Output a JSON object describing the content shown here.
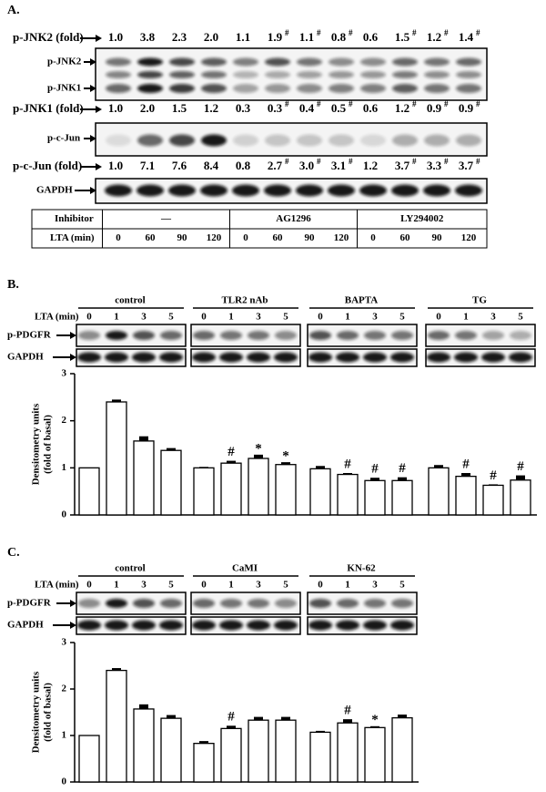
{
  "panel_a": {
    "panel_label": "A.",
    "fold_rows": [
      {
        "label": "p-JNK2 (fold)",
        "values": [
          "1.0",
          "3.8",
          "2.3",
          "2.0",
          "1.1",
          "1.9",
          "1.1",
          "0.8",
          "0.6",
          "1.5",
          "1.2",
          "1.4"
        ],
        "marks": [
          null,
          null,
          null,
          null,
          null,
          "#",
          "#",
          "#",
          null,
          "#",
          "#",
          "#"
        ]
      },
      {
        "label": "p-JNK1 (fold)",
        "values": [
          "1.0",
          "2.0",
          "1.5",
          "1.2",
          "0.3",
          "0.3",
          "0.4",
          "0.5",
          "0.6",
          "1.2",
          "0.9",
          "0.9"
        ],
        "marks": [
          null,
          null,
          null,
          null,
          null,
          "#",
          "#",
          "#",
          null,
          "#",
          "#",
          "#"
        ]
      },
      {
        "label": "p-c-Jun (fold)",
        "values": [
          "1.0",
          "7.1",
          "7.6",
          "8.4",
          "0.8",
          "2.7",
          "3.0",
          "3.1",
          "1.2",
          "3.7",
          "3.3",
          "3.7"
        ],
        "marks": [
          null,
          null,
          null,
          null,
          null,
          "#",
          "#",
          "#",
          null,
          "#",
          "#",
          "#"
        ]
      }
    ],
    "blot_labels": [
      "p-JNK2",
      "p-JNK1",
      "p-c-Jun",
      "GAPDH"
    ],
    "table": {
      "header": [
        "Inhibitor",
        "—",
        "AG1296",
        "LY294002"
      ],
      "row_label": "LTA (min)",
      "times": [
        "0",
        "60",
        "90",
        "120",
        "0",
        "60",
        "90",
        "120",
        "0",
        "60",
        "90",
        "120"
      ]
    }
  },
  "chart_data": [
    {
      "type": "bar",
      "panel_label": "B.",
      "groups": [
        "control",
        "TLR2 nAb",
        "BAPTA",
        "TG"
      ],
      "time_label": "LTA (min)",
      "blot_labels": [
        "p-PDGFR",
        "GAPDH"
      ],
      "categories": [
        "0",
        "1",
        "3",
        "5",
        "0",
        "1",
        "3",
        "5",
        "0",
        "1",
        "3",
        "5",
        "0",
        "1",
        "3",
        "5"
      ],
      "values": [
        1.0,
        2.4,
        1.57,
        1.37,
        1.0,
        1.1,
        1.2,
        1.07,
        0.98,
        0.86,
        0.73,
        0.73,
        1.0,
        0.82,
        0.63,
        0.74
      ],
      "errors": [
        0,
        0.05,
        0.1,
        0.05,
        0.02,
        0.05,
        0.08,
        0.05,
        0.06,
        0.03,
        0.06,
        0.07,
        0.06,
        0.07,
        0.02,
        0.1
      ],
      "markers": [
        null,
        null,
        null,
        null,
        null,
        "#",
        "*",
        "*",
        null,
        "#",
        "#",
        "#",
        null,
        "#",
        "#",
        "#"
      ],
      "y_label": [
        "Densitometry units",
        "(fold of basal)"
      ],
      "ylim": [
        0,
        3
      ],
      "yticks": [
        0,
        1,
        2,
        3
      ],
      "color": "#ffffff"
    },
    {
      "type": "bar",
      "panel_label": "C.",
      "groups": [
        "control",
        "CaMI",
        "KN-62"
      ],
      "time_label": "LTA (min)",
      "blot_labels": [
        "p-PDGFR",
        "GAPDH"
      ],
      "categories": [
        "0",
        "1",
        "3",
        "5",
        "0",
        "1",
        "3",
        "5",
        "0",
        "1",
        "3",
        "5"
      ],
      "values": [
        1.0,
        2.4,
        1.57,
        1.37,
        0.83,
        1.15,
        1.33,
        1.33,
        1.07,
        1.27,
        1.17,
        1.38
      ],
      "errors": [
        0,
        0.05,
        0.1,
        0.07,
        0.05,
        0.06,
        0.07,
        0.07,
        0.03,
        0.08,
        0.03,
        0.07
      ],
      "markers": [
        null,
        null,
        null,
        null,
        null,
        "#",
        null,
        null,
        null,
        "#",
        "*",
        null
      ],
      "y_label": [
        "Densitometry units",
        "(fold of basal)"
      ],
      "ylim": [
        0,
        3
      ],
      "yticks": [
        0,
        1,
        2,
        3
      ],
      "color": "#ffffff"
    }
  ]
}
